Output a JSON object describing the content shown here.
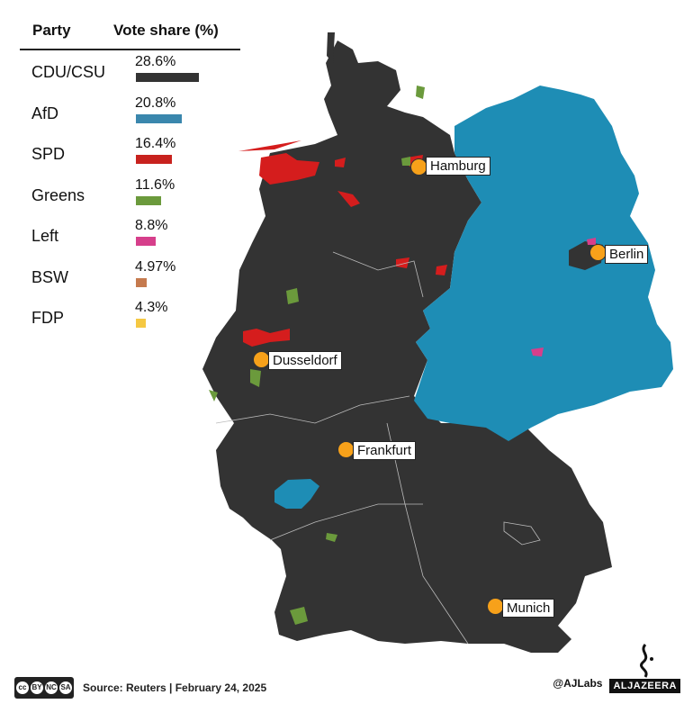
{
  "legend": {
    "header_party": "Party",
    "header_share": "Vote share (%)",
    "parties": [
      {
        "name": "CDU/CSU",
        "share_label": "28.6%",
        "share": 28.6,
        "color": "#333333"
      },
      {
        "name": "AfD",
        "share_label": "20.8%",
        "share": 20.8,
        "color": "#3a87ad"
      },
      {
        "name": "SPD",
        "share_label": "16.4%",
        "share": 16.4,
        "color": "#c8221e"
      },
      {
        "name": "Greens",
        "share_label": "11.6%",
        "share": 11.6,
        "color": "#6b9a3c"
      },
      {
        "name": "Left",
        "share_label": "8.8%",
        "share": 8.8,
        "color": "#d63f8b"
      },
      {
        "name": "BSW",
        "share_label": "4.97%",
        "share": 4.97,
        "color": "#c57a4e"
      },
      {
        "name": "FDP",
        "share_label": "4.3%",
        "share": 4.3,
        "color": "#f5c842"
      }
    ]
  },
  "map": {
    "region_colors": {
      "west": "#333333",
      "east": "#1e8db5",
      "spd": "#d51d1d",
      "greens": "#6b9a3c",
      "left": "#d63f8b"
    },
    "cities": [
      "Hamburg",
      "Berlin",
      "Dusseldorf",
      "Frankfurt",
      "Munich"
    ],
    "marker_color": "#f7a11a"
  },
  "footer": {
    "license_icon": "creative-commons-by-nc-sa-icon",
    "license_text": "BY NC SA",
    "source": "Source: Reuters  |  February 24, 2025",
    "handle": "@AJLabs",
    "brand": "ALJAZEERA"
  }
}
